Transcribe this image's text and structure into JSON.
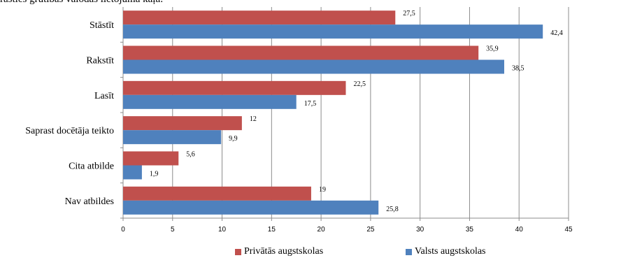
{
  "header": {
    "text": "rastīes grūtības valodas lietojumā kāļā:"
  },
  "chart_data": {
    "type": "bar",
    "orientation": "horizontal",
    "categories": [
      "Stāstīt",
      "Rakstīt",
      "Lasīt",
      "Saprast docētāja teikto",
      "Cita atbilde",
      "Nav atbildes"
    ],
    "series": [
      {
        "name": "Privātās augstskolas",
        "color": "#c0504d",
        "values": [
          27.5,
          35.9,
          22.5,
          12,
          5.6,
          19
        ],
        "labels": [
          "27,5",
          "35,9",
          "22,5",
          "12",
          "5,6",
          "19"
        ]
      },
      {
        "name": "Valsts augstskolas",
        "color": "#4f81bd",
        "values": [
          42.4,
          38.5,
          17.5,
          9.9,
          1.9,
          25.8
        ],
        "labels": [
          "42,4",
          "38,5",
          "17,5",
          "9,9",
          "1,9",
          "25,8"
        ]
      }
    ],
    "xlim": [
      0,
      45
    ],
    "xticks": [
      "0",
      "5",
      "10",
      "15",
      "20",
      "25",
      "30",
      "35",
      "40",
      "45"
    ],
    "grid": true,
    "legend_position": "bottom"
  }
}
